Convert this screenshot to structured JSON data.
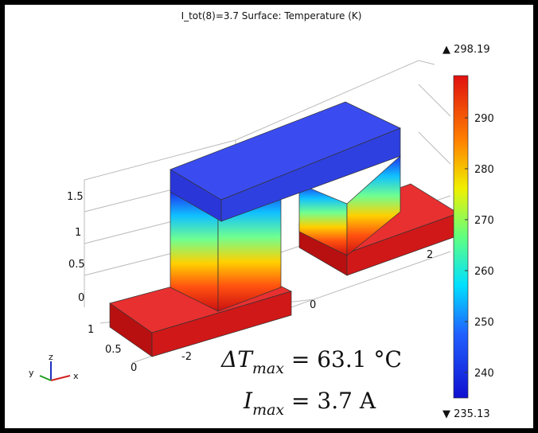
{
  "plot_title": "I_tot(8)=3.7   Surface: Temperature (K)",
  "colorbar": {
    "max_label": "▲ 298.19",
    "min_label": "▼ 235.13",
    "ticks": [
      290,
      280,
      270,
      260,
      250,
      240
    ]
  },
  "axis_labels": {
    "z": [
      "1.5",
      "1",
      "0.5",
      "0"
    ],
    "y": [
      "1",
      "0.5",
      "0"
    ],
    "x": [
      "-2",
      "0",
      "2"
    ]
  },
  "triad": [
    "z",
    "y",
    "x"
  ],
  "annotations": [
    {
      "base": "ΔT",
      "subscript": "max",
      "rest": " = 63.1 °C"
    },
    {
      "base": "I",
      "subscript": "max",
      "rest": " = 3.7 A"
    }
  ]
}
